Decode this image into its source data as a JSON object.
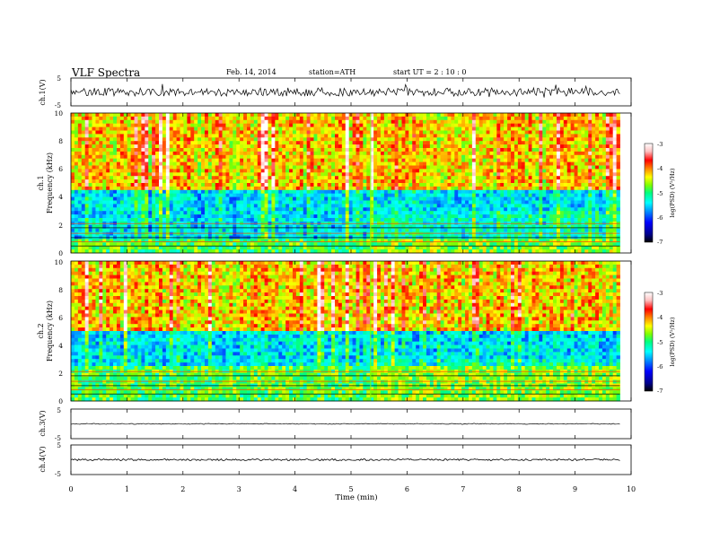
{
  "header": {
    "title": "VLF  Spectra",
    "date": "Feb. 14, 2014",
    "station": "station=ATH",
    "start_ut": "start  UT  =   2  : 10 : 0"
  },
  "chart_data": {
    "type": "heatmap",
    "x": {
      "label": "Time  (min)",
      "range": [
        0,
        10
      ],
      "ticks": [
        0,
        1,
        2,
        3,
        4,
        5,
        6,
        7,
        8,
        9,
        10
      ],
      "data_end": 9.8
    },
    "panels": [
      {
        "kind": "waveform",
        "ylabel": "ch.1(V)",
        "ylim": [
          -5,
          5
        ],
        "yticks": [
          "5",
          "-5"
        ],
        "baseline": 0,
        "amplitude": 1.5
      },
      {
        "kind": "spectrogram",
        "ylabel_top": "ch.1",
        "ylabel": "Frequency  (kHz)",
        "ylim": [
          0,
          10
        ],
        "yticks": [
          0,
          2,
          4,
          6,
          8,
          10
        ],
        "colorbar": {
          "range": [
            -7,
            -3
          ],
          "ticks": [
            "-3",
            "-4",
            "-5",
            "-6",
            "-7"
          ],
          "label": "log(PSD) (V²/Hz)"
        },
        "quiet_band_khz": [
          1,
          4.5
        ],
        "event_min": 5.35
      },
      {
        "kind": "spectrogram",
        "ylabel_top": "ch.2",
        "ylabel": "Frequency  (kHz)",
        "ylim": [
          0,
          10
        ],
        "yticks": [
          0,
          2,
          4,
          6,
          8,
          10
        ],
        "colorbar": {
          "range": [
            -7,
            -3
          ],
          "ticks": [
            "-3",
            "-4",
            "-5",
            "-6",
            "-7"
          ],
          "label": "log(PSD) (V²/Hz)"
        },
        "quiet_band_khz": [
          2.5,
          5
        ],
        "event_min": 5.35
      },
      {
        "kind": "waveform",
        "ylabel": "ch.3(V)",
        "ylim": [
          -5,
          5
        ],
        "yticks": [
          "5",
          "-5"
        ],
        "baseline": 0,
        "amplitude": 0.15
      },
      {
        "kind": "waveform",
        "ylabel": "ch.4(V)",
        "ylim": [
          -5,
          5
        ],
        "yticks": [
          "5",
          "-5"
        ],
        "baseline": 0,
        "amplitude": 0.3
      }
    ],
    "colormap": [
      "#000000",
      "#00008b",
      "#0000ff",
      "#0080ff",
      "#00ffff",
      "#00ff80",
      "#80ff00",
      "#ffff00",
      "#ff8000",
      "#ff0000",
      "#ffc0c0",
      "#ffffff"
    ]
  }
}
